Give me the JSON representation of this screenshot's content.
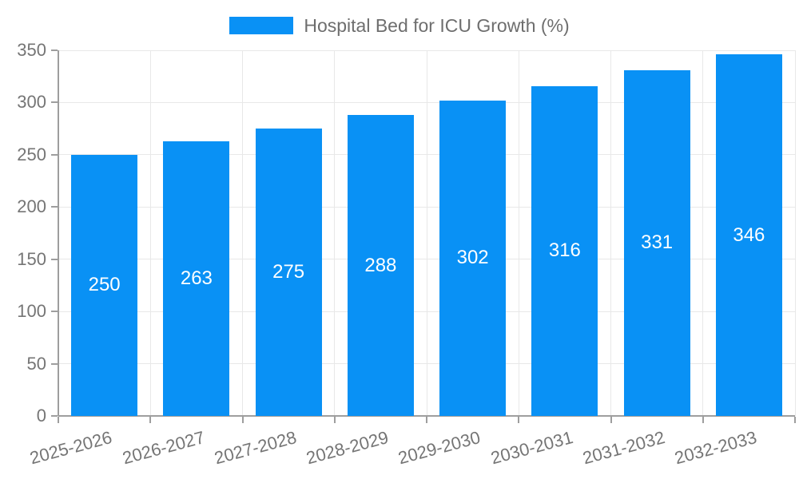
{
  "chart_data": {
    "type": "bar",
    "title": "Hospital Bed for ICU Growth (%)",
    "legend": [
      "Hospital Bed for ICU Growth (%)"
    ],
    "legend_position": "top-center",
    "categories": [
      "2025-2026",
      "2026-2027",
      "2027-2028",
      "2028-2029",
      "2029-2030",
      "2030-2031",
      "2031-2032",
      "2032-2033"
    ],
    "series": [
      {
        "name": "Hospital Bed for ICU Growth (%)",
        "values": [
          250,
          263,
          275,
          288,
          302,
          316,
          331,
          346
        ]
      }
    ],
    "value_labels_shown": true,
    "value_label_position": "center-of-bar",
    "xlabel": "",
    "ylabel": "",
    "ylim": [
      0,
      350
    ],
    "yticks": [
      0,
      50,
      100,
      150,
      200,
      250,
      300,
      350
    ],
    "grid": true,
    "x_label_rotation_deg": -15,
    "colors": {
      "bar": "#0991f5",
      "grid": "#e8e8e8",
      "axis": "#9e9e9e",
      "tick_text": "#757575",
      "legend_text": "#6e6e6e",
      "value_text": "#ffffff",
      "background": "#ffffff"
    }
  }
}
